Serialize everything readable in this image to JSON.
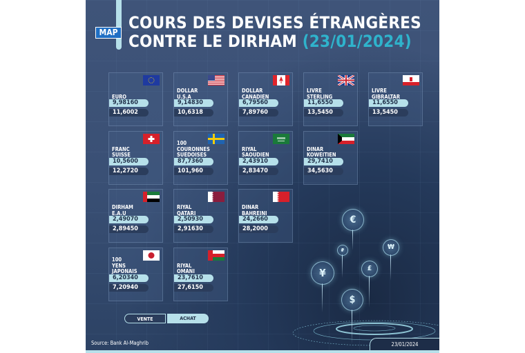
{
  "header": {
    "logo": "MAP",
    "title_line1": "COURS DES DEVISES ÉTRANGÈRES",
    "title_line2": "CONTRE LE DIRHAM",
    "title_date": "(23/01/2024)"
  },
  "currencies": [
    {
      "name": "EURO",
      "flag": "eu",
      "vente": "9,98160",
      "achat": "11,6002"
    },
    {
      "name": "DOLLAR\nU.S.A",
      "flag": "us",
      "vente": "9,14830",
      "achat": "10,6318"
    },
    {
      "name": "DOLLAR\nCANADIEN",
      "flag": "ca",
      "vente": "6,79560",
      "achat": "7,89760"
    },
    {
      "name": "LIVRE\nSTERLING",
      "flag": "gb",
      "vente": "11,6550",
      "achat": "13,5450"
    },
    {
      "name": "LIVRE\nGIBRALTAR",
      "flag": "gi",
      "vente": "11,6550",
      "achat": "13,5450"
    },
    {
      "name": "FRANC\nSUISSE",
      "flag": "ch",
      "vente": "10,5600",
      "achat": "12,2720"
    },
    {
      "name": "100\nCOURONNES\nSUEDOISES",
      "flag": "se",
      "vente": "87,7360",
      "achat": "101,960"
    },
    {
      "name": "RIYAL\nSAOUDIEN",
      "flag": "sa",
      "vente": "2,43910",
      "achat": "2,83470"
    },
    {
      "name": "DINAR\nKOWEITIEN",
      "flag": "kw",
      "vente": "29,7410",
      "achat": "34,5630"
    },
    {
      "name": "DIRHAM\nE.A.U",
      "flag": "ae",
      "vente": "2,49070",
      "achat": "2,89450"
    },
    {
      "name": "RIYAL\nQATARI",
      "flag": "qa",
      "vente": "2,50930",
      "achat": "2,91630"
    },
    {
      "name": "DINAR\nBAHREINI",
      "flag": "bh",
      "vente": "24,2660",
      "achat": "28,2000"
    },
    {
      "name": "100\nYENS\nJAPONAIS",
      "flag": "jp",
      "vente": "6,20340",
      "achat": "7,20940"
    },
    {
      "name": "RIYAL\nOMANI",
      "flag": "om",
      "vente": "23,7610",
      "achat": "27,6150"
    }
  ],
  "legend": {
    "vente": "VENTE",
    "achat": "ACHAT"
  },
  "footer": {
    "source": "Source: Bank Al-Maghrib",
    "date": "23/01/2024"
  },
  "decor": {
    "coins": [
      "€",
      "₽",
      "₩",
      "¥",
      "£",
      "$"
    ]
  },
  "colors": {
    "background": "#3d5377",
    "accent": "#2fb3cc",
    "light": "#b6e0ea",
    "dark_pill": "#2b3d5c"
  }
}
